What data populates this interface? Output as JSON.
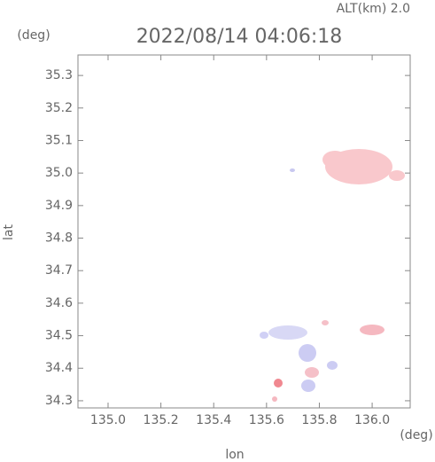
{
  "chart_data": {
    "type": "map",
    "title": "2022/08/14 04:06:18",
    "subtitle": "ALT(km) 2.0",
    "x_label": "lon",
    "y_label": "lat",
    "x_unit": "(deg)",
    "y_unit": "(deg)",
    "xlim": [
      134.886,
      136.144
    ],
    "ylim": [
      34.278,
      35.363
    ],
    "xticks": [
      {
        "value": 135,
        "label": "135.0"
      },
      135.2,
      135.4,
      135.6,
      135.8,
      {
        "value": 136,
        "label": "136.0"
      }
    ],
    "yticks": [
      34.3,
      34.4,
      34.5,
      34.6,
      34.7,
      34.8,
      34.9,
      {
        "value": 35,
        "label": "35.0"
      },
      35.1,
      35.2,
      35.3
    ]
  }
}
